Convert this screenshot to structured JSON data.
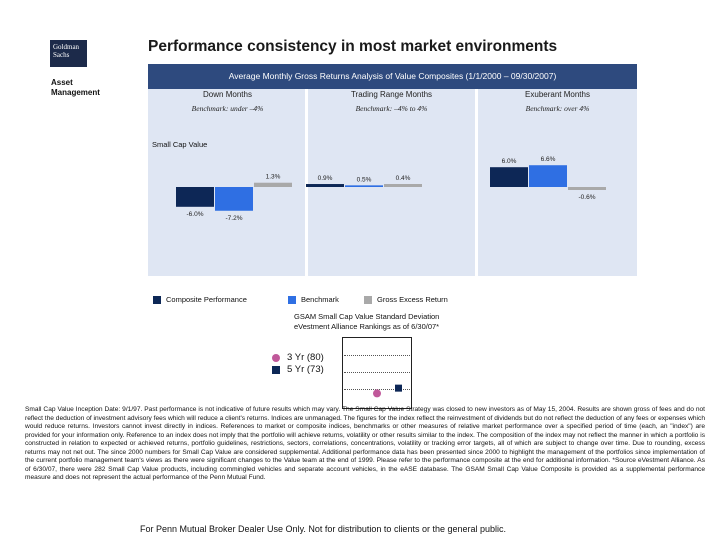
{
  "logo": {
    "line1": "Goldman",
    "line2": "Sachs"
  },
  "asset_management": {
    "line1": "Asset",
    "line2": "Management"
  },
  "title": "Performance consistency in most market environments",
  "panel_header": "Average Monthly Gross Returns Analysis of Value Composites (1/1/2000 – 09/30/2007)",
  "columns": [
    {
      "title": "Down Months",
      "benchmark": "Benchmark: under –4%"
    },
    {
      "title": "Trading Range Months",
      "benchmark": "Benchmark: –4% to 4%"
    },
    {
      "title": "Exuberant Months",
      "benchmark": "Benchmark: over 4%"
    }
  ],
  "subtitle": "Small Cap Value",
  "colors": {
    "composite": "#0d2756",
    "benchmark": "#2f6fe3",
    "excess": "#a9a9a9",
    "header": "#2e4a7e",
    "panel": "#dfe6f3",
    "pink": "#c0589a"
  },
  "chart_data": {
    "type": "bar",
    "categories": [
      "Down Months",
      "Trading Range Months",
      "Exuberant Months"
    ],
    "series": [
      {
        "name": "Composite Performance",
        "values": [
          -6.0,
          0.9,
          6.0
        ]
      },
      {
        "name": "Benchmark",
        "values": [
          -7.2,
          0.5,
          6.6
        ]
      },
      {
        "name": "Gross Excess Return",
        "values": [
          1.3,
          0.4,
          -0.6
        ]
      }
    ],
    "labels": [
      [
        "-6.0%",
        "-7.2%",
        "1.3%"
      ],
      [
        "0.9%",
        "0.5%",
        "0.4%"
      ],
      [
        "6.0%",
        "6.6%",
        "-0.6%"
      ]
    ],
    "legend": "bottom"
  },
  "legend_items": [
    "Composite Performance",
    "Benchmark",
    "Gross Excess Return"
  ],
  "gsam": {
    "line1": "GSAM Small Cap Value Standard Deviation",
    "line2": "eVestment Alliance Rankings as of 6/30/07*"
  },
  "rankings": [
    {
      "label": "3 Yr (80)",
      "rank": 80
    },
    {
      "label": "5 Yr (73)",
      "rank": 73
    }
  ],
  "disclaimer": "Small Cap Value Inception Date: 9/1/97. Past performance is not indicative of future results which may vary. The Small Cap Value Strategy was closed to new investors as of May 15, 2004. Results are shown gross of fees and do not reflect the deduction of investment advisory fees which will reduce a client's returns. Indices are unmanaged. The figures for the index reflect the reinvestment of dividends but do not reflect the deduction of any fees or expenses which would reduce returns. Investors cannot invest directly in indices. References to market or composite indices, benchmarks or other measures of relative market performance over a specified period of time (each, an \"index\") are provided for your information only. Reference to an index does not imply that the portfolio will achieve returns, volatility or other results similar to the index. The composition of the index may not reflect the manner in which a portfolio is constructed in relation to expected or achieved returns, portfolio guidelines, restrictions, sectors, correlations, concentrations, volatility or tracking error targets, all of which are subject to change over time. Due to rounding, excess returns may not net out. The since 2000 numbers for Small Cap Value are considered supplemental. Additional performance data has been presented since 2000 to highlight the management of the portfolios since implementation of the current portfolio management team's views as there were significant changes to the Value team at the end of 1999. Please refer to the performance composite at the end for additional information. *Source eVestment Alliance. As of 6/30/07, there were 282 Small Cap Value products, including commingled vehicles and separate account vehicles, in the eASE database. The GSAM Small Cap Value Composite is provided as a supplemental performance measure and does not represent the actual performance of the Penn Mutual Fund.",
  "footer": "For Penn Mutual Broker Dealer Use Only.  Not for distribution to clients or the general public."
}
